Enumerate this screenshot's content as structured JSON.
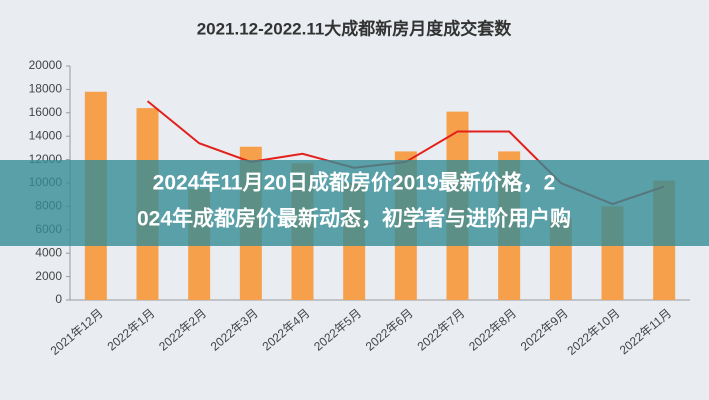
{
  "chart_data": {
    "type": "bar-line",
    "title": "2021.12-2022.11大成都新房月度成交套数",
    "categories": [
      "2021年12月",
      "2022年1月",
      "2022年2月",
      "2022年3月",
      "2022年4月",
      "2022年5月",
      "2022年6月",
      "2022年7月",
      "2022年8月",
      "2022年9月",
      "2022年10月",
      "2022年11月"
    ],
    "series": [
      {
        "type": "bar",
        "color": "#f7a04b",
        "values": [
          17800,
          16400,
          9500,
          13100,
          11700,
          10000,
          12700,
          16100,
          12700,
          7000,
          8000,
          10200
        ]
      },
      {
        "type": "line",
        "color": "#e3211c",
        "values": [
          null,
          17000,
          13400,
          11800,
          12500,
          11300,
          11800,
          14400,
          14400,
          10000,
          8200,
          9700
        ]
      }
    ],
    "ylim": [
      0,
      20000
    ],
    "yticks": [
      0,
      2000,
      4000,
      6000,
      8000,
      10000,
      12000,
      14000,
      16000,
      18000,
      20000
    ],
    "grid": false
  },
  "banner": {
    "lines": [
      "2024年11月20日成都房价2019最新价格，2",
      "024年成都房价最新动态，初学者与进阶用户购"
    ]
  }
}
